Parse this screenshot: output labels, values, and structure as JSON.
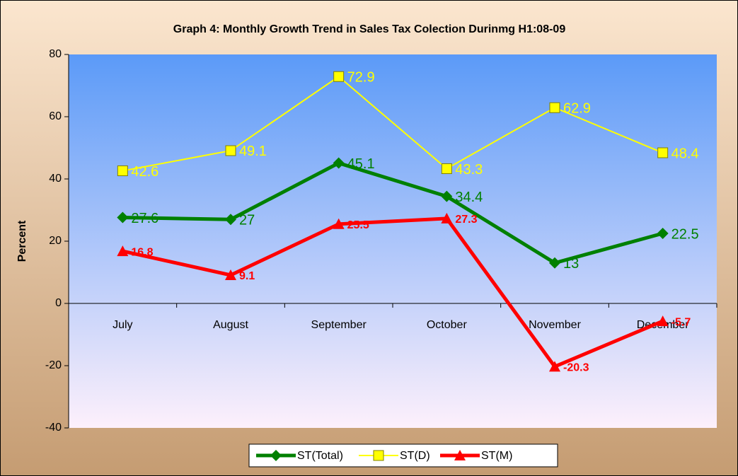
{
  "chart_data": {
    "type": "line",
    "title": "Graph 4: Monthly Growth Trend in Sales Tax Colection Durinmg H1:08-09",
    "y_label": "Percent",
    "categories": [
      "July",
      "August",
      "September",
      "October",
      "November",
      "December"
    ],
    "series": [
      {
        "name": "ST(Total)",
        "color": "#008000",
        "marker": "diamond",
        "values": [
          27.6,
          27,
          45.1,
          34.4,
          13,
          22.5
        ]
      },
      {
        "name": "ST(D)",
        "color": "#ffff00",
        "marker": "square",
        "values": [
          42.6,
          49.1,
          72.9,
          43.3,
          62.9,
          48.4
        ]
      },
      {
        "name": "ST(M)",
        "color": "#ff0000",
        "marker": "triangle",
        "values": [
          16.8,
          9.1,
          25.5,
          27.3,
          -20.3,
          -5.7
        ]
      }
    ],
    "ylim": [
      -40,
      80
    ],
    "yticks": [
      -40,
      -20,
      0,
      20,
      40,
      60,
      80
    ],
    "legend": "bottom"
  }
}
